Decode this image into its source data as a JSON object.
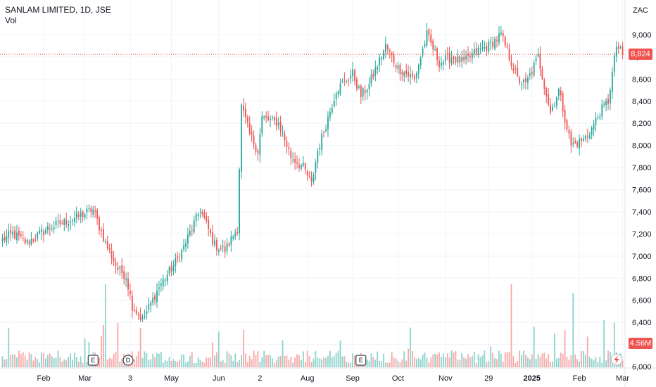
{
  "header": {
    "symbol_line": "SANLAM LIMITED, 1D, JSE",
    "volume_label": "Vol"
  },
  "currency": "ZAC",
  "last_price": {
    "label": "8,824",
    "value": 8824,
    "color": "#ef5350"
  },
  "volume_tag": {
    "label": "4.56M",
    "color": "#ef5350"
  },
  "colors": {
    "up": "#26a69a",
    "down": "#ef5350",
    "up_vol": "#8cd3cc",
    "down_vol": "#f7a9a7",
    "grid": "#f0f3fa"
  },
  "chart_data": {
    "type": "candlestick",
    "title": "SANLAM LIMITED, 1D, JSE",
    "ylim": [
      6000,
      9200
    ],
    "y_ticks": [
      6000,
      6200,
      6400,
      6600,
      6800,
      7000,
      7200,
      7400,
      7600,
      7800,
      8000,
      8200,
      8400,
      8600,
      8800,
      9000
    ],
    "y_tick_labels": [
      "6,000",
      "6,200",
      "6,400",
      "6,600",
      "6,800",
      "7,000",
      "7,200",
      "7,400",
      "7,600",
      "7,800",
      "8,000",
      "8,200",
      "8,400",
      "8,600",
      "8,800",
      "9,000"
    ],
    "x_labels": [
      "Feb",
      "Mar",
      "3",
      "May",
      "Jun",
      "2",
      "Aug",
      "Sep",
      "Oct",
      "Nov",
      "29",
      "2025",
      "Feb",
      "Mar"
    ],
    "x_label_index": [
      20,
      40,
      62,
      82,
      105,
      125,
      148,
      170,
      192,
      215,
      236,
      257,
      280,
      301
    ],
    "bold_labels": [
      "2025"
    ],
    "events": [
      {
        "letter": "E",
        "index": 44
      },
      {
        "letter": "D",
        "index": 61
      },
      {
        "letter": "E",
        "index": 174
      }
    ],
    "anchors": [
      [
        0,
        7150
      ],
      [
        5,
        7200
      ],
      [
        12,
        7120
      ],
      [
        22,
        7250
      ],
      [
        36,
        7350
      ],
      [
        44,
        7420
      ],
      [
        50,
        7120
      ],
      [
        56,
        6880
      ],
      [
        60,
        6820
      ],
      [
        63,
        6550
      ],
      [
        68,
        6420
      ],
      [
        76,
        6720
      ],
      [
        86,
        7000
      ],
      [
        96,
        7420
      ],
      [
        103,
        7100
      ],
      [
        108,
        7050
      ],
      [
        114,
        7250
      ],
      [
        116,
        8350
      ],
      [
        120,
        8100
      ],
      [
        124,
        7950
      ],
      [
        126,
        8250
      ],
      [
        134,
        8200
      ],
      [
        140,
        7900
      ],
      [
        146,
        7800
      ],
      [
        150,
        7650
      ],
      [
        153,
        7950
      ],
      [
        158,
        8250
      ],
      [
        162,
        8500
      ],
      [
        170,
        8650
      ],
      [
        174,
        8450
      ],
      [
        178,
        8550
      ],
      [
        186,
        8900
      ],
      [
        192,
        8700
      ],
      [
        200,
        8600
      ],
      [
        206,
        9000
      ],
      [
        212,
        8750
      ],
      [
        218,
        8800
      ],
      [
        224,
        8750
      ],
      [
        230,
        8850
      ],
      [
        236,
        8900
      ],
      [
        242,
        9000
      ],
      [
        245,
        8850
      ],
      [
        250,
        8600
      ],
      [
        254,
        8550
      ],
      [
        260,
        8800
      ],
      [
        266,
        8300
      ],
      [
        270,
        8500
      ],
      [
        276,
        8000
      ],
      [
        282,
        8050
      ],
      [
        286,
        8150
      ],
      [
        290,
        8300
      ],
      [
        294,
        8400
      ],
      [
        298,
        8900
      ],
      [
        301,
        8824
      ]
    ],
    "candle_count": 302
  }
}
